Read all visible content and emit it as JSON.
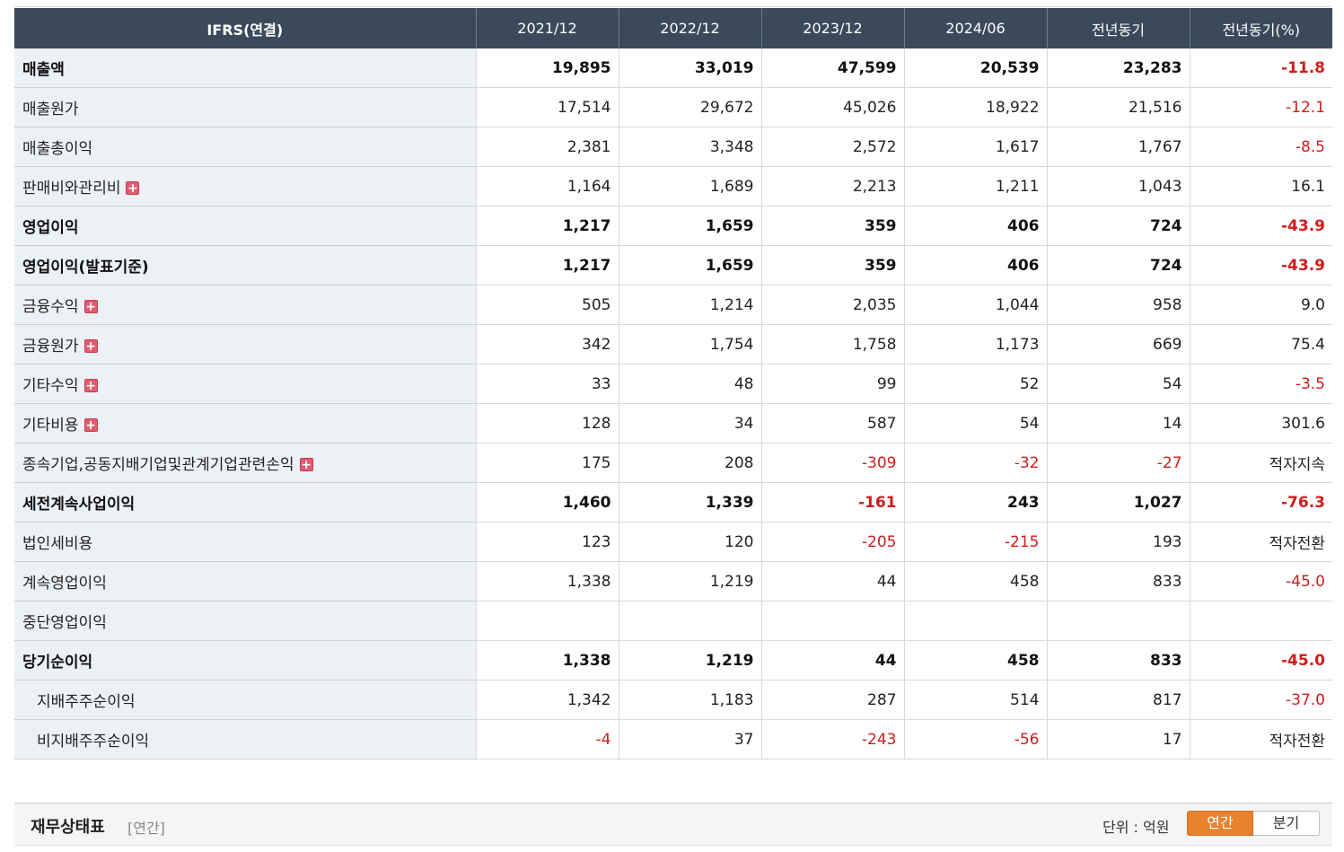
{
  "table": {
    "headers": [
      "IFRS(연결)",
      "2021/12",
      "2022/12",
      "2023/12",
      "2024/06",
      "전년동기",
      "전년동기(%)"
    ],
    "rows": [
      {
        "label": "매출액",
        "bold": true,
        "expandable": false,
        "sub": false,
        "values": [
          "19,895",
          "33,019",
          "47,599",
          "20,539",
          "23,283",
          "-11.8"
        ]
      },
      {
        "label": "매출원가",
        "bold": false,
        "expandable": false,
        "sub": false,
        "values": [
          "17,514",
          "29,672",
          "45,026",
          "18,922",
          "21,516",
          "-12.1"
        ]
      },
      {
        "label": "매출총이익",
        "bold": false,
        "expandable": false,
        "sub": false,
        "values": [
          "2,381",
          "3,348",
          "2,572",
          "1,617",
          "1,767",
          "-8.5"
        ]
      },
      {
        "label": "판매비와관리비",
        "bold": false,
        "expandable": true,
        "sub": false,
        "values": [
          "1,164",
          "1,689",
          "2,213",
          "1,211",
          "1,043",
          "16.1"
        ]
      },
      {
        "label": "영업이익",
        "bold": true,
        "expandable": false,
        "sub": false,
        "values": [
          "1,217",
          "1,659",
          "359",
          "406",
          "724",
          "-43.9"
        ]
      },
      {
        "label": "영업이익(발표기준)",
        "bold": true,
        "expandable": false,
        "sub": false,
        "values": [
          "1,217",
          "1,659",
          "359",
          "406",
          "724",
          "-43.9"
        ]
      },
      {
        "label": "금융수익",
        "bold": false,
        "expandable": true,
        "sub": false,
        "values": [
          "505",
          "1,214",
          "2,035",
          "1,044",
          "958",
          "9.0"
        ]
      },
      {
        "label": "금융원가",
        "bold": false,
        "expandable": true,
        "sub": false,
        "values": [
          "342",
          "1,754",
          "1,758",
          "1,173",
          "669",
          "75.4"
        ]
      },
      {
        "label": "기타수익",
        "bold": false,
        "expandable": true,
        "sub": false,
        "values": [
          "33",
          "48",
          "99",
          "52",
          "54",
          "-3.5"
        ]
      },
      {
        "label": "기타비용",
        "bold": false,
        "expandable": true,
        "sub": false,
        "values": [
          "128",
          "34",
          "587",
          "54",
          "14",
          "301.6"
        ]
      },
      {
        "label": "종속기업,공동지배기업및관계기업관련손익",
        "bold": false,
        "expandable": true,
        "sub": false,
        "values": [
          "175",
          "208",
          "-309",
          "-32",
          "-27",
          "적자지속"
        ]
      },
      {
        "label": "세전계속사업이익",
        "bold": true,
        "expandable": false,
        "sub": false,
        "values": [
          "1,460",
          "1,339",
          "-161",
          "243",
          "1,027",
          "-76.3"
        ]
      },
      {
        "label": "법인세비용",
        "bold": false,
        "expandable": false,
        "sub": false,
        "values": [
          "123",
          "120",
          "-205",
          "-215",
          "193",
          "적자전환"
        ]
      },
      {
        "label": "계속영업이익",
        "bold": false,
        "expandable": false,
        "sub": false,
        "values": [
          "1,338",
          "1,219",
          "44",
          "458",
          "833",
          "-45.0"
        ]
      },
      {
        "label": "중단영업이익",
        "bold": false,
        "expandable": false,
        "sub": false,
        "values": [
          "",
          "",
          "",
          "",
          "",
          ""
        ]
      },
      {
        "label": "당기순이익",
        "bold": true,
        "expandable": false,
        "sub": false,
        "values": [
          "1,338",
          "1,219",
          "44",
          "458",
          "833",
          "-45.0"
        ]
      },
      {
        "label": "지배주주순이익",
        "bold": false,
        "expandable": false,
        "sub": true,
        "values": [
          "1,342",
          "1,183",
          "287",
          "514",
          "817",
          "-37.0"
        ]
      },
      {
        "label": "비지배주주순이익",
        "bold": false,
        "expandable": false,
        "sub": true,
        "values": [
          "-4",
          "37",
          "-243",
          "-56",
          "17",
          "적자전환"
        ]
      }
    ]
  },
  "next_section": {
    "title": "재무상태표",
    "period": "[연간]",
    "unit_label": "단위 : 억원",
    "toggle": {
      "selected": "연간",
      "other": "분기"
    }
  },
  "colors": {
    "header_bg": "#3a4a5b",
    "label_bg": "#edf1f5",
    "negative": "#d01c1c",
    "toggle_active": "#e8822c"
  }
}
